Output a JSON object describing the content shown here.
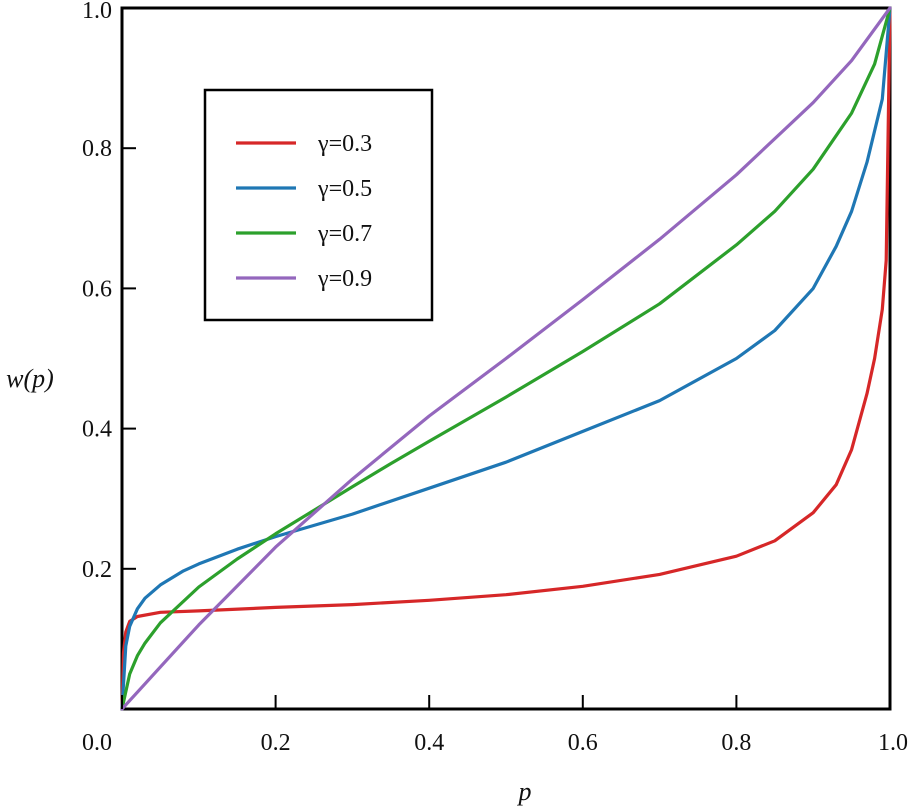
{
  "chart_data": {
    "type": "line",
    "xlabel": "p",
    "ylabel": "w(p)",
    "xlim": [
      0.0,
      1.0
    ],
    "ylim": [
      0.0,
      1.0
    ],
    "x_ticks": [
      "0.0",
      "0.2",
      "0.4",
      "0.6",
      "0.8",
      "1.0"
    ],
    "y_ticks": [
      "0.2",
      "0.4",
      "0.6",
      "0.8",
      "1.0"
    ],
    "grid": false,
    "legend_position": "top-left",
    "series": [
      {
        "name": "γ=0.3",
        "color": "#d62728",
        "points": [
          [
            0.0,
            0.0
          ],
          [
            0.002,
            0.08
          ],
          [
            0.005,
            0.11
          ],
          [
            0.01,
            0.125
          ],
          [
            0.02,
            0.132
          ],
          [
            0.05,
            0.138
          ],
          [
            0.1,
            0.14
          ],
          [
            0.2,
            0.145
          ],
          [
            0.3,
            0.149
          ],
          [
            0.4,
            0.155
          ],
          [
            0.5,
            0.163
          ],
          [
            0.6,
            0.175
          ],
          [
            0.7,
            0.192
          ],
          [
            0.8,
            0.218
          ],
          [
            0.85,
            0.24
          ],
          [
            0.9,
            0.28
          ],
          [
            0.93,
            0.32
          ],
          [
            0.95,
            0.37
          ],
          [
            0.97,
            0.45
          ],
          [
            0.98,
            0.5
          ],
          [
            0.99,
            0.57
          ],
          [
            0.995,
            0.64
          ],
          [
            1.0,
            1.0
          ]
        ]
      },
      {
        "name": "γ=0.5",
        "color": "#1f77b4",
        "points": [
          [
            0.0,
            0.0
          ],
          [
            0.005,
            0.09
          ],
          [
            0.01,
            0.118
          ],
          [
            0.02,
            0.143
          ],
          [
            0.03,
            0.158
          ],
          [
            0.05,
            0.177
          ],
          [
            0.08,
            0.197
          ],
          [
            0.1,
            0.207
          ],
          [
            0.15,
            0.228
          ],
          [
            0.2,
            0.246
          ],
          [
            0.3,
            0.278
          ],
          [
            0.4,
            0.315
          ],
          [
            0.5,
            0.352
          ],
          [
            0.6,
            0.396
          ],
          [
            0.7,
            0.44
          ],
          [
            0.8,
            0.5
          ],
          [
            0.85,
            0.54
          ],
          [
            0.9,
            0.6
          ],
          [
            0.93,
            0.66
          ],
          [
            0.95,
            0.71
          ],
          [
            0.97,
            0.78
          ],
          [
            0.99,
            0.87
          ],
          [
            1.0,
            1.0
          ]
        ]
      },
      {
        "name": "γ=0.7",
        "color": "#2ca02c",
        "points": [
          [
            0.0,
            0.0
          ],
          [
            0.01,
            0.05
          ],
          [
            0.02,
            0.076
          ],
          [
            0.03,
            0.094
          ],
          [
            0.05,
            0.123
          ],
          [
            0.1,
            0.174
          ],
          [
            0.15,
            0.214
          ],
          [
            0.2,
            0.25
          ],
          [
            0.3,
            0.317
          ],
          [
            0.35,
            0.35
          ],
          [
            0.4,
            0.382
          ],
          [
            0.5,
            0.445
          ],
          [
            0.6,
            0.51
          ],
          [
            0.7,
            0.578
          ],
          [
            0.8,
            0.662
          ],
          [
            0.85,
            0.71
          ],
          [
            0.9,
            0.77
          ],
          [
            0.95,
            0.85
          ],
          [
            0.98,
            0.92
          ],
          [
            1.0,
            1.0
          ]
        ]
      },
      {
        "name": "γ=0.9",
        "color": "#9467bd",
        "points": [
          [
            0.0,
            0.0
          ],
          [
            0.02,
            0.024
          ],
          [
            0.05,
            0.06
          ],
          [
            0.1,
            0.12
          ],
          [
            0.2,
            0.231
          ],
          [
            0.3,
            0.328
          ],
          [
            0.4,
            0.418
          ],
          [
            0.5,
            0.5
          ],
          [
            0.6,
            0.584
          ],
          [
            0.7,
            0.67
          ],
          [
            0.8,
            0.762
          ],
          [
            0.9,
            0.865
          ],
          [
            0.95,
            0.925
          ],
          [
            1.0,
            1.0
          ]
        ]
      }
    ]
  }
}
